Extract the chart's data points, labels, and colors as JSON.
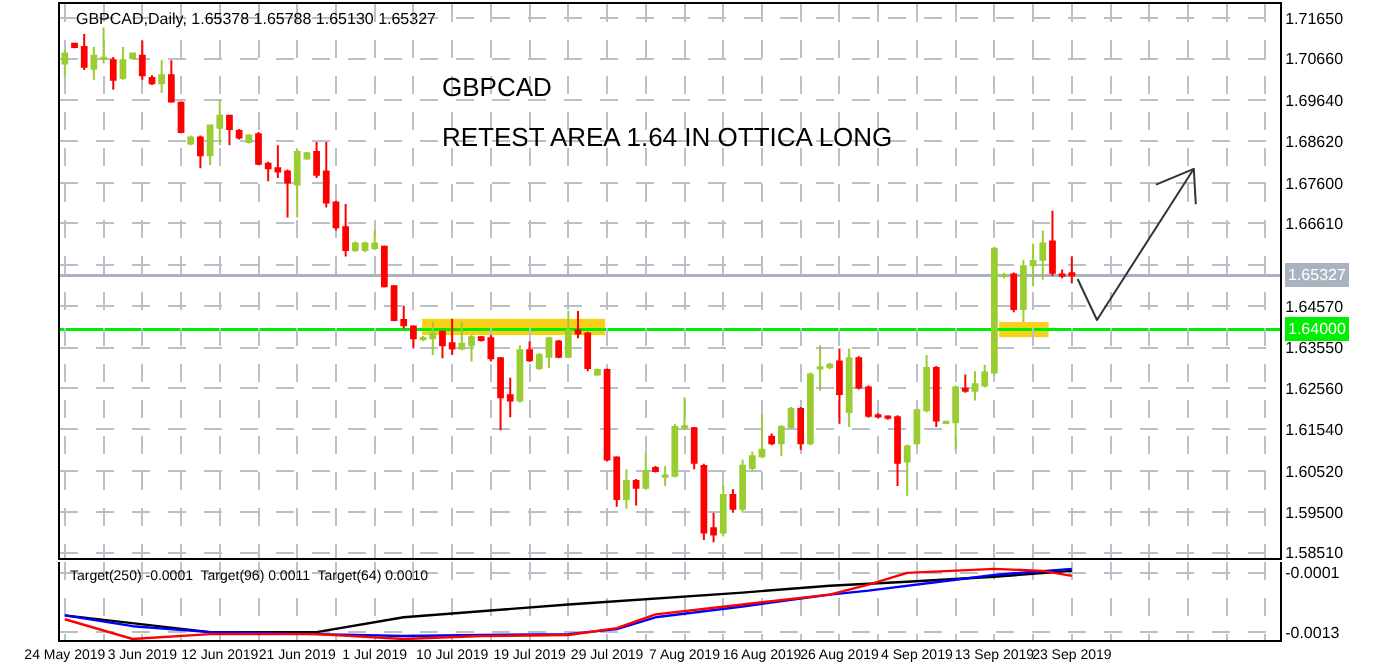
{
  "chart_data": [
    {
      "type": "candlestick",
      "annotations": [
        "GBPCAD,Daily, 1.65378 1.65788 1.65130 1.65327",
        "GBPCAD",
        "RETEST AREA 1.64 IN OTTICA LONG"
      ],
      "ohlc": [
        [
          1.7054,
          1.7086,
          1.7022,
          1.7078
        ],
        [
          1.7102,
          1.7105,
          1.7091,
          1.7094
        ],
        [
          1.7094,
          1.7126,
          1.7038,
          1.7046
        ],
        [
          1.7041,
          1.7094,
          1.7014,
          1.7073
        ],
        [
          1.7065,
          1.7142,
          1.7054,
          1.7068
        ],
        [
          1.7062,
          1.707,
          1.6989,
          1.7014
        ],
        [
          1.7018,
          1.7094,
          1.7014,
          1.7062
        ],
        [
          1.7067,
          1.7081,
          1.7063,
          1.7078
        ],
        [
          1.7073,
          1.711,
          1.7014,
          1.7025
        ],
        [
          1.7018,
          1.7025,
          1.7001,
          1.7005
        ],
        [
          1.7005,
          1.7062,
          1.6981,
          1.7025
        ],
        [
          1.7025,
          1.7062,
          1.6957,
          1.696
        ],
        [
          1.6957,
          1.696,
          1.6882,
          1.6885
        ],
        [
          1.6857,
          1.6877,
          1.6853,
          1.6872
        ],
        [
          1.6872,
          1.6877,
          1.6796,
          1.6828
        ],
        [
          1.6828,
          1.6904,
          1.6804,
          1.6901
        ],
        [
          1.6896,
          1.6965,
          1.6853,
          1.6925
        ],
        [
          1.6925,
          1.6928,
          1.6853,
          1.6893
        ],
        [
          1.6888,
          1.6893,
          1.6867,
          1.6872
        ],
        [
          1.6861,
          1.688,
          1.6857,
          1.6877
        ],
        [
          1.688,
          1.6885,
          1.6804,
          1.6807
        ],
        [
          1.6807,
          1.6812,
          1.6764,
          1.6796
        ],
        [
          1.6796,
          1.6853,
          1.6772,
          1.6788
        ],
        [
          1.6788,
          1.6793,
          1.6675,
          1.6761
        ],
        [
          1.6756,
          1.6841,
          1.6675,
          1.6836
        ],
        [
          1.682,
          1.6836,
          1.6817,
          1.6833
        ],
        [
          1.6836,
          1.6861,
          1.6772,
          1.678
        ],
        [
          1.6788,
          1.6861,
          1.67,
          1.6712
        ],
        [
          1.6712,
          1.6716,
          1.6643,
          1.6651
        ],
        [
          1.6651,
          1.6708,
          1.6579,
          1.6595
        ],
        [
          1.6595,
          1.6616,
          1.659,
          1.6611
        ],
        [
          1.6595,
          1.6616,
          1.659,
          1.6611
        ],
        [
          1.66,
          1.6643,
          1.6595,
          1.6611
        ],
        [
          1.6603,
          1.6606,
          1.6503,
          1.6506
        ],
        [
          1.6506,
          1.6509,
          1.642,
          1.6423
        ],
        [
          1.6423,
          1.6458,
          1.6402,
          1.641
        ],
        [
          1.6407,
          1.641,
          1.6353,
          1.6378
        ],
        [
          1.6376,
          1.6384,
          1.6371,
          1.6379
        ],
        [
          1.6378,
          1.6418,
          1.6337,
          1.639
        ],
        [
          1.6394,
          1.6397,
          1.6329,
          1.6361
        ],
        [
          1.6366,
          1.6426,
          1.6337,
          1.6353
        ],
        [
          1.6353,
          1.6418,
          1.6349,
          1.6365
        ],
        [
          1.6361,
          1.6386,
          1.6321,
          1.6381
        ],
        [
          1.6381,
          1.6384,
          1.637,
          1.6374
        ],
        [
          1.6378,
          1.6386,
          1.6321,
          1.6329
        ],
        [
          1.6329,
          1.6332,
          1.6152,
          1.6233
        ],
        [
          1.6238,
          1.6281,
          1.6184,
          1.6225
        ],
        [
          1.6225,
          1.6361,
          1.622,
          1.6349
        ],
        [
          1.6349,
          1.637,
          1.632,
          1.6324
        ],
        [
          1.6305,
          1.6342,
          1.63,
          1.6337
        ],
        [
          1.6333,
          1.6382,
          1.6305,
          1.6378
        ],
        [
          1.637,
          1.6374,
          1.6329,
          1.6333
        ],
        [
          1.6333,
          1.6445,
          1.6329,
          1.6397
        ],
        [
          1.6397,
          1.6445,
          1.6378,
          1.639
        ],
        [
          1.639,
          1.6394,
          1.6297,
          1.6305
        ],
        [
          1.6289,
          1.6304,
          1.6286,
          1.63
        ],
        [
          1.63,
          1.6304,
          1.6075,
          1.608
        ],
        [
          1.6085,
          1.6088,
          1.5964,
          1.5983
        ],
        [
          1.5983,
          1.6056,
          1.5959,
          1.6027
        ],
        [
          1.6027,
          1.6032,
          1.5967,
          1.6011
        ],
        [
          1.6011,
          1.6096,
          1.6007,
          1.6052
        ],
        [
          1.6059,
          1.6064,
          1.6048,
          1.6052
        ],
        [
          1.6038,
          1.6064,
          1.6015,
          1.6041
        ],
        [
          1.604,
          1.6168,
          1.6036,
          1.616
        ],
        [
          1.6159,
          1.6233,
          1.6152,
          1.6162
        ],
        [
          1.6157,
          1.616,
          1.6056,
          1.6072
        ],
        [
          1.6064,
          1.607,
          1.5882,
          1.5901
        ],
        [
          1.5911,
          1.5949,
          1.5877,
          1.5896
        ],
        [
          1.5901,
          1.6017,
          1.5891,
          1.5993
        ],
        [
          1.5993,
          1.6007,
          1.5949,
          1.5959
        ],
        [
          1.5959,
          1.608,
          1.5949,
          1.6065
        ],
        [
          1.6059,
          1.6099,
          1.6051,
          1.6088
        ],
        [
          1.6088,
          1.6192,
          1.6083,
          1.6104
        ],
        [
          1.6136,
          1.6144,
          1.6115,
          1.612
        ],
        [
          1.612,
          1.6165,
          1.6088,
          1.616
        ],
        [
          1.616,
          1.6209,
          1.6155,
          1.6204
        ],
        [
          1.6204,
          1.6209,
          1.6104,
          1.612
        ],
        [
          1.612,
          1.6294,
          1.6115,
          1.6289
        ],
        [
          1.6304,
          1.6361,
          1.6249,
          1.6307
        ],
        [
          1.6307,
          1.6318,
          1.6302,
          1.6313
        ],
        [
          1.6321,
          1.6353,
          1.6168,
          1.6241
        ],
        [
          1.6197,
          1.6353,
          1.616,
          1.6329
        ],
        [
          1.6329,
          1.6334,
          1.6252,
          1.6257
        ],
        [
          1.6257,
          1.6262,
          1.6183,
          1.6188
        ],
        [
          1.6189,
          1.6194,
          1.6181,
          1.6186
        ],
        [
          1.6186,
          1.6189,
          1.6178,
          1.6183
        ],
        [
          1.6184,
          1.6189,
          1.6015,
          1.6072
        ],
        [
          1.6075,
          1.6117,
          1.5991,
          1.6112
        ],
        [
          1.612,
          1.6205,
          1.6115,
          1.6201
        ],
        [
          1.6201,
          1.6337,
          1.6196,
          1.6305
        ],
        [
          1.6305,
          1.631,
          1.616,
          1.6176
        ],
        [
          1.617,
          1.6176,
          1.6167,
          1.6173
        ],
        [
          1.6172,
          1.6262,
          1.6104,
          1.6257
        ],
        [
          1.6254,
          1.6289,
          1.6244,
          1.6249
        ],
        [
          1.6249,
          1.6297,
          1.6225,
          1.6265
        ],
        [
          1.6262,
          1.6313,
          1.6257,
          1.6294
        ],
        [
          1.6294,
          1.6603,
          1.6289,
          1.6598
        ],
        [
          1.6531,
          1.6539,
          1.6526,
          1.6534
        ],
        [
          1.6535,
          1.654,
          1.6442,
          1.645
        ],
        [
          1.645,
          1.6571,
          1.6418,
          1.6555
        ],
        [
          1.6558,
          1.6611,
          1.6506,
          1.6568
        ],
        [
          1.6571,
          1.6643,
          1.6522,
          1.6611
        ],
        [
          1.6616,
          1.6692,
          1.6531,
          1.6539
        ],
        [
          1.6535,
          1.6547,
          1.6526,
          1.6532
        ],
        [
          1.6538,
          1.6579,
          1.6513,
          1.6533
        ],
        null,
        null,
        null,
        null,
        null,
        null,
        null,
        null,
        null,
        null,
        null,
        null,
        null,
        null,
        null,
        null,
        null,
        null,
        null,
        null,
        null
      ],
      "colors": [
        "#9acd32",
        "#ff0000",
        "#ff0000",
        "#9acd32",
        "#9acd32",
        "#ff0000",
        "#9acd32",
        "#9acd32",
        "#ff0000",
        "#ff0000",
        "#9acd32",
        "#ff0000",
        "#ff0000",
        "#9acd32",
        "#ff0000",
        "#9acd32",
        "#9acd32",
        "#ff0000",
        "#ff0000",
        "#9acd32",
        "#ff0000",
        "#ff0000",
        "#ff0000",
        "#ff0000",
        "#9acd32",
        "#9acd32",
        "#ff0000",
        "#ff0000",
        "#ff0000",
        "#ff0000",
        "#9acd32",
        "#9acd32",
        "#9acd32",
        "#ff0000",
        "#ff0000",
        "#ff0000",
        "#ff0000",
        "#9acd32",
        "#9acd32",
        "#ff0000",
        "#ff0000",
        "#9acd32",
        "#9acd32",
        "#ff0000",
        "#ff0000",
        "#ff0000",
        "#ff0000",
        "#9acd32",
        "#ff0000",
        "#9acd32",
        "#9acd32",
        "#ff0000",
        "#9acd32",
        "#ff0000",
        "#ff0000",
        "#9acd32",
        "#ff0000",
        "#ff0000",
        "#9acd32",
        "#ff0000",
        "#9acd32",
        "#ff0000",
        "#9acd32",
        "#9acd32",
        "#9acd32",
        "#ff0000",
        "#ff0000",
        "#ff0000",
        "#9acd32",
        "#ff0000",
        "#9acd32",
        "#9acd32",
        "#9acd32",
        "#ff0000",
        "#9acd32",
        "#9acd32",
        "#ff0000",
        "#9acd32",
        "#9acd32",
        "#9acd32",
        "#ff0000",
        "#9acd32",
        "#ff0000",
        "#ff0000",
        "#ff0000",
        "#ff0000",
        "#ff0000",
        "#9acd32",
        "#9acd32",
        "#9acd32",
        "#ff0000",
        "#9acd32",
        "#9acd32",
        "#ff0000",
        "#9acd32",
        "#9acd32",
        "#9acd32",
        "#9acd32",
        "#ff0000",
        "#9acd32",
        "#9acd32",
        "#9acd32",
        "#ff0000",
        "#ff0000",
        "#ff0000",
        null,
        null,
        null,
        null,
        null,
        null,
        null,
        null,
        null,
        null,
        null,
        null,
        null,
        null,
        null,
        null,
        null,
        null,
        null,
        null,
        null
      ],
      "ylim": [
        1.5838,
        1.72
      ],
      "yticks": [
        {
          "value": 1.7165,
          "label": "1.71650"
        },
        {
          "value": 1.7066,
          "label": "1.70660"
        },
        {
          "value": 1.6964,
          "label": "1.69640"
        },
        {
          "value": 1.6862,
          "label": "1.68620"
        },
        {
          "value": 1.676,
          "label": "1.67600"
        },
        {
          "value": 1.6661,
          "label": "1.66610"
        },
        {
          "value": 1.6559,
          "label": null
        },
        {
          "value": 1.6457,
          "label": "1.64570"
        },
        {
          "value": 1.6355,
          "label": "1.63550"
        },
        {
          "value": 1.6256,
          "label": "1.62560"
        },
        {
          "value": 1.6154,
          "label": "1.61540"
        },
        {
          "value": 1.6052,
          "label": "1.60520"
        },
        {
          "value": 1.595,
          "label": "1.59500"
        },
        {
          "value": 1.5851,
          "label": "1.58510"
        }
      ],
      "ref_lines": [
        {
          "axis": "y",
          "value": 1.65327,
          "label": "1.65327",
          "color": "#a9b3bf"
        },
        {
          "axis": "y",
          "value": 1.64,
          "label": "1.64000",
          "color": "#00ee00"
        }
      ],
      "grid": true,
      "tick_labels": "y"
    },
    {
      "type": "line",
      "annotations": [
        "Target(250) -0.0001  Target(96) 0.0011  Target(64) 0.0010"
      ],
      "categories": [
        "24 May 2019",
        null,
        null,
        null,
        null,
        null,
        null,
        null,
        "3 Jun 2019",
        null,
        null,
        null,
        null,
        null,
        null,
        null,
        "12 Jun 2019",
        null,
        null,
        null,
        null,
        null,
        null,
        null,
        "21 Jun 2019",
        null,
        null,
        null,
        null,
        null,
        null,
        null,
        "1 Jul 2019",
        null,
        null,
        null,
        null,
        null,
        null,
        null,
        "10 Jul 2019",
        null,
        null,
        null,
        null,
        null,
        null,
        null,
        "19 Jul 2019",
        null,
        null,
        null,
        null,
        null,
        null,
        null,
        "29 Jul 2019",
        null,
        null,
        null,
        null,
        null,
        null,
        null,
        "7 Aug 2019",
        null,
        null,
        null,
        null,
        null,
        null,
        null,
        "16 Aug 2019",
        null,
        null,
        null,
        null,
        null,
        null,
        null,
        "26 Aug 2019",
        null,
        null,
        null,
        null,
        null,
        null,
        null,
        "4 Sep 2019",
        null,
        null,
        null,
        null,
        null,
        null,
        null,
        "13 Sep 2019",
        null,
        null,
        null,
        null,
        null,
        null,
        null,
        "23 Sep 2019",
        null,
        null,
        null,
        null,
        null,
        null,
        null,
        null,
        null,
        null,
        null,
        null,
        null,
        null,
        null,
        null,
        null,
        null,
        null,
        null,
        null
      ],
      "series": [
        {
          "color": "#000000",
          "values": [
            -0.00096,
            null,
            null,
            null,
            null,
            null,
            null,
            null,
            null,
            null,
            null,
            null,
            null,
            null,
            null,
            -0.0013,
            null,
            null,
            null,
            null,
            null,
            null,
            null,
            null,
            null,
            null,
            -0.0013,
            null,
            null,
            null,
            null,
            null,
            null,
            null,
            null,
            -0.001,
            null,
            null,
            null,
            null,
            null,
            null,
            null,
            null,
            null,
            null,
            null,
            null,
            null,
            null,
            null,
            null,
            -0.00074,
            null,
            null,
            null,
            null,
            null,
            null,
            null,
            null,
            null,
            null,
            null,
            null,
            null,
            null,
            null,
            null,
            null,
            -0.0005,
            null,
            null,
            null,
            null,
            null,
            null,
            null,
            null,
            -0.00036,
            null,
            null,
            null,
            null,
            null,
            null,
            null,
            -0.00028,
            null,
            null,
            null,
            null,
            null,
            null,
            null,
            null,
            -0.00018,
            null,
            null,
            null,
            null,
            null,
            null,
            null,
            -6e-05,
            null,
            null,
            null,
            null,
            null,
            null,
            null,
            null,
            null,
            null,
            null,
            null,
            null,
            null,
            null,
            null,
            null,
            null,
            null,
            null,
            null
          ]
        },
        {
          "color": "#0000ff",
          "values": [
            -0.00096,
            null,
            null,
            null,
            null,
            null,
            null,
            -0.00118,
            null,
            null,
            null,
            null,
            null,
            null,
            null,
            -0.0013,
            null,
            null,
            null,
            null,
            null,
            null,
            null,
            null,
            null,
            null,
            -0.00134,
            null,
            null,
            null,
            null,
            null,
            null,
            null,
            null,
            -0.00138,
            null,
            null,
            null,
            null,
            null,
            null,
            null,
            -0.00136,
            null,
            null,
            null,
            null,
            null,
            null,
            null,
            null,
            -0.00134,
            null,
            null,
            null,
            null,
            -0.00124,
            null,
            null,
            null,
            -0.001,
            null,
            null,
            null,
            null,
            null,
            null,
            null,
            null,
            -0.00078,
            null,
            null,
            null,
            null,
            null,
            null,
            null,
            null,
            -0.00054,
            null,
            null,
            null,
            -0.00046,
            null,
            null,
            null,
            null,
            null,
            null,
            null,
            null,
            -0.00024,
            null,
            null,
            null,
            -0.00014,
            null,
            null,
            null,
            null,
            null,
            null,
            null,
            -2e-05,
            null,
            null,
            null,
            null,
            null,
            null,
            null,
            null,
            null,
            null,
            null,
            null,
            null,
            null,
            null,
            null,
            null,
            null,
            null,
            null,
            null
          ]
        },
        {
          "color": "#ff0000",
          "values": [
            -0.00104,
            null,
            null,
            null,
            null,
            null,
            null,
            -0.00144,
            null,
            null,
            null,
            null,
            null,
            null,
            null,
            -0.00134,
            null,
            null,
            null,
            null,
            null,
            null,
            null,
            null,
            null,
            null,
            -0.00134,
            null,
            null,
            null,
            null,
            null,
            null,
            null,
            null,
            -0.00144,
            null,
            null,
            null,
            null,
            null,
            null,
            null,
            -0.00138,
            null,
            null,
            null,
            null,
            null,
            null,
            null,
            null,
            -0.00136,
            null,
            null,
            null,
            null,
            -0.00122,
            null,
            null,
            null,
            -0.00094,
            null,
            null,
            null,
            null,
            null,
            null,
            null,
            null,
            -0.00074,
            null,
            null,
            null,
            null,
            null,
            null,
            null,
            null,
            -0.00054,
            null,
            null,
            null,
            -0.00034,
            null,
            null,
            null,
            -0.0001,
            null,
            null,
            null,
            null,
            null,
            null,
            null,
            null,
            -2e-05,
            null,
            null,
            null,
            null,
            -6e-05,
            null,
            null,
            -0.00016,
            null,
            null,
            null,
            null,
            null,
            null,
            null,
            null,
            null,
            null,
            null,
            null,
            null,
            null,
            null,
            null,
            null,
            null,
            null,
            null,
            null
          ]
        }
      ],
      "ylim": [
        -0.00146,
        0.00012
      ],
      "yticks": [
        -0.0001,
        -0.0013
      ],
      "grid": true
    }
  ]
}
